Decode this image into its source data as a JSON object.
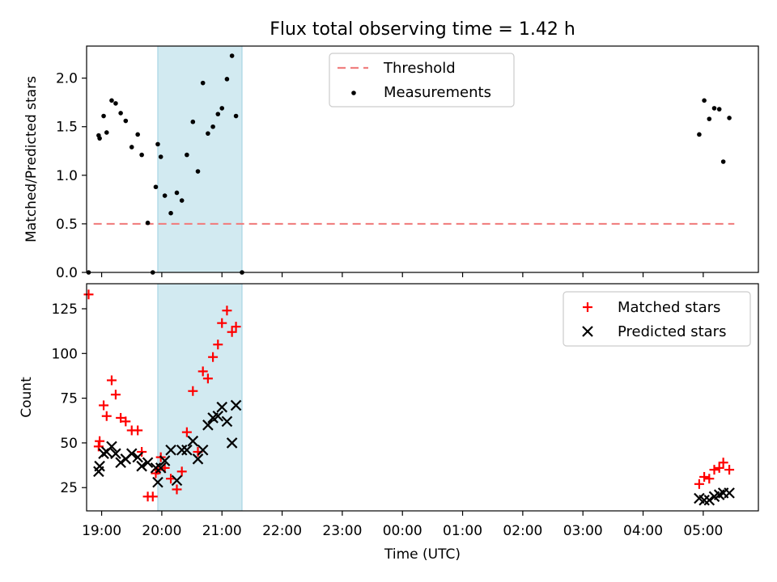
{
  "title": "Flux total observing time = 1.42 h",
  "colors": {
    "threshold": "#f08080",
    "measurements": "#000000",
    "matched": "#ff0000",
    "predicted": "#000000",
    "shade": "#add8e6"
  },
  "x_ticks": [
    "19:00",
    "20:00",
    "21:00",
    "22:00",
    "23:00",
    "00:00",
    "01:00",
    "02:00",
    "03:00",
    "04:00",
    "05:00"
  ],
  "chart_data": [
    {
      "type": "scatter",
      "ylabel": "Matched/Predicted stars",
      "xlim": [
        "18:45",
        "05:55"
      ],
      "ylim": [
        0,
        2.33
      ],
      "y_ticks": [
        "0.0",
        "0.5",
        "1.0",
        "1.5",
        "2.0"
      ],
      "shaded_interval": [
        "19:56",
        "21:20"
      ],
      "legend": {
        "position": "top-center",
        "threshold_label": "Threshold",
        "measurements_label": "Measurements"
      },
      "threshold": {
        "name": "Threshold",
        "style": "dashed",
        "y": 0.5,
        "x": [
          "18:52",
          "05:31"
        ]
      },
      "series": [
        {
          "name": "Measurements",
          "marker": "dot",
          "x": [
            "18:47",
            "18:57",
            "18:58",
            "19:02",
            "19:05",
            "19:10",
            "19:14",
            "19:19",
            "19:24",
            "19:30",
            "19:36",
            "19:40",
            "19:46",
            "19:51",
            "19:54",
            "19:56",
            "19:59",
            "20:03",
            "20:09",
            "20:15",
            "20:20",
            "20:25",
            "20:31",
            "20:36",
            "20:41",
            "20:46",
            "20:51",
            "20:56",
            "21:00",
            "21:05",
            "21:10",
            "21:14",
            "21:20",
            "04:56",
            "05:01",
            "05:06",
            "05:11",
            "05:16",
            "05:20",
            "05:26"
          ],
          "y": [
            0.0,
            1.41,
            1.38,
            1.61,
            1.44,
            1.77,
            1.74,
            1.64,
            1.56,
            1.29,
            1.42,
            1.21,
            0.51,
            0.0,
            0.88,
            1.32,
            1.19,
            0.79,
            0.61,
            0.82,
            0.74,
            1.21,
            1.55,
            1.04,
            1.95,
            1.43,
            1.5,
            1.63,
            1.69,
            1.99,
            2.23,
            1.61,
            0.0,
            1.42,
            1.77,
            1.58,
            1.69,
            1.68,
            1.14,
            1.59
          ]
        }
      ]
    },
    {
      "type": "scatter",
      "xlabel": "Time (UTC)",
      "ylabel": "Count",
      "xlim": [
        "18:45",
        "05:55"
      ],
      "ylim": [
        12,
        139
      ],
      "y_ticks": [
        "25",
        "50",
        "75",
        "100",
        "125"
      ],
      "shaded_interval": [
        "19:56",
        "21:20"
      ],
      "legend": {
        "position": "top-right"
      },
      "series": [
        {
          "name": "Matched stars",
          "marker": "plus",
          "x": [
            "18:47",
            "18:57",
            "18:58",
            "19:02",
            "19:05",
            "19:10",
            "19:14",
            "19:19",
            "19:24",
            "19:30",
            "19:36",
            "19:40",
            "19:46",
            "19:51",
            "19:54",
            "19:56",
            "19:59",
            "20:03",
            "20:09",
            "20:15",
            "20:20",
            "20:25",
            "20:31",
            "20:36",
            "20:41",
            "20:46",
            "20:51",
            "20:56",
            "21:00",
            "21:05",
            "21:10",
            "21:14",
            "21:20",
            "04:56",
            "05:01",
            "05:06",
            "05:11",
            "05:16",
            "05:20",
            "05:26"
          ],
          "y": [
            133,
            48,
            51,
            71,
            65,
            85,
            77,
            64,
            62,
            57,
            57,
            45,
            20,
            20,
            33,
            35,
            42,
            36,
            30,
            24,
            34,
            56,
            79,
            45,
            90,
            86,
            98,
            105,
            117,
            124,
            112,
            115,
            null,
            27,
            31,
            30,
            35,
            36,
            39,
            35
          ]
        },
        {
          "name": "Predicted stars",
          "marker": "x",
          "x": [
            "18:57",
            "18:58",
            "19:02",
            "19:05",
            "19:10",
            "19:14",
            "19:19",
            "19:24",
            "19:30",
            "19:36",
            "19:40",
            "19:46",
            "19:51",
            "19:54",
            "19:56",
            "19:59",
            "20:03",
            "20:09",
            "20:15",
            "20:20",
            "20:25",
            "20:31",
            "20:36",
            "20:41",
            "20:46",
            "20:51",
            "20:56",
            "21:00",
            "21:05",
            "21:10",
            "21:14",
            "21:20",
            "04:56",
            "05:01",
            "05:06",
            "05:11",
            "05:16",
            "05:20",
            "05:26"
          ],
          "y": [
            34,
            37,
            44,
            45,
            48,
            44,
            39,
            41,
            44,
            42,
            37,
            39,
            null,
            36,
            28,
            36,
            40,
            46,
            29,
            46,
            46,
            51,
            41,
            46,
            60,
            64,
            65,
            70,
            62,
            50,
            71,
            null,
            19,
            18,
            18,
            20,
            21,
            22,
            22
          ]
        }
      ]
    }
  ]
}
